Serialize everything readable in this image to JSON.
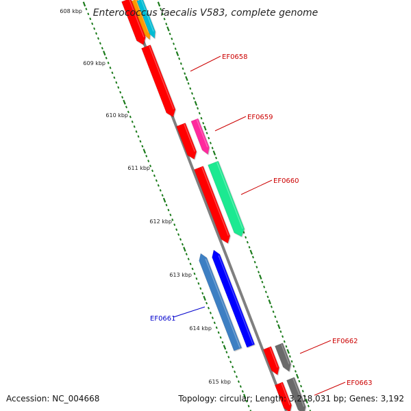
{
  "title": "Enterococcus faecalis V583, complete genome",
  "accession_text": "Accession: NC_004668",
  "summary_text": "Topology: circular; Length: 3,218,031 bp; Genes: 3,192",
  "colors": {
    "backbone": "#7f7f7f",
    "tick": "#1a7a1a",
    "label_red": "#cc0000",
    "label_blue": "#0000cc"
  },
  "kbp_labels": [
    "608 kbp",
    "609 kbp",
    "610 kbp",
    "611 kbp",
    "612 kbp",
    "613 kbp",
    "614 kbp",
    "615 kbp"
  ],
  "gene_labels": [
    {
      "name": "EF0658",
      "color": "#cc0000"
    },
    {
      "name": "EF0659",
      "color": "#cc0000"
    },
    {
      "name": "EF0660",
      "color": "#cc0000"
    },
    {
      "name": "EF0661",
      "color": "#0000cc"
    },
    {
      "name": "EF0662",
      "color": "#cc0000"
    },
    {
      "name": "EF0663",
      "color": "#cc0000"
    }
  ],
  "genes": [
    {
      "color": "#ffcccc",
      "strand": "forward"
    },
    {
      "color": "#ff9900",
      "strand": "forward"
    },
    {
      "color": "#00bcd4",
      "strand": "forward"
    },
    {
      "color": "#ff0000",
      "strand": "forward"
    },
    {
      "color": "#ff0000",
      "strand": "forward"
    },
    {
      "color": "#ff0000",
      "strand": "forward"
    },
    {
      "color": "#ff2a9d",
      "strand": "forward"
    },
    {
      "color": "#ff0000",
      "strand": "forward"
    },
    {
      "color": "#1de991",
      "strand": "forward"
    },
    {
      "color": "#3d7fc3",
      "strand": "reverse"
    },
    {
      "color": "#0000ff",
      "strand": "reverse"
    },
    {
      "color": "#ff0000",
      "strand": "forward"
    },
    {
      "color": "#6a6a6a",
      "strand": "forward"
    },
    {
      "color": "#ff0000",
      "strand": "forward"
    },
    {
      "color": "#6a6a6a",
      "strand": "forward"
    }
  ]
}
